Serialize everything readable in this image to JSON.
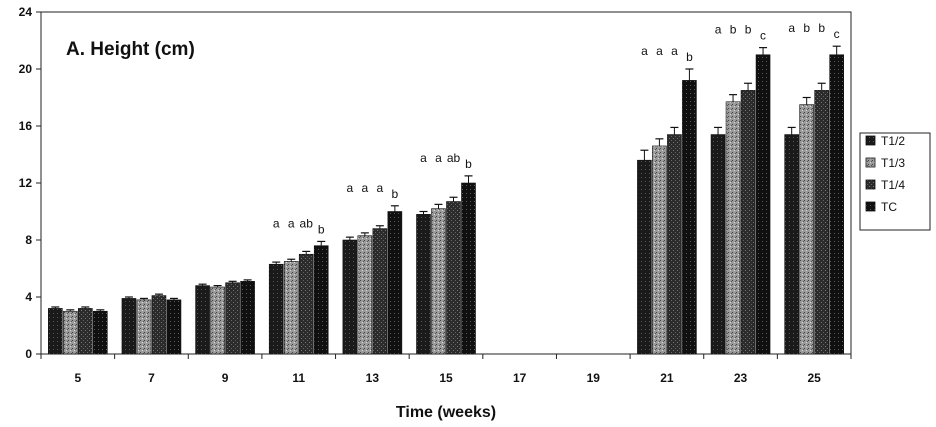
{
  "chart_data": {
    "type": "bar",
    "title": "A.  Height (cm)",
    "xlabel": "Time (weeks)",
    "ylabel": "",
    "ylim": [
      0,
      24
    ],
    "yticks": [
      "0",
      "4",
      "8",
      "12",
      "16",
      "20",
      "24"
    ],
    "categories": [
      "5",
      "7",
      "9",
      "11",
      "13",
      "15",
      "17",
      "19",
      "21",
      "23",
      "25"
    ],
    "grid": false,
    "legend_position": "right",
    "colors": {
      "T1/2": "#1a1a1a",
      "T1/3": "#9a9a9a",
      "T1/4": "#2b2b2b",
      "TC": "#101010"
    },
    "series": [
      {
        "name": "T1/2",
        "values": [
          3.2,
          3.9,
          4.8,
          6.3,
          8.0,
          9.8,
          null,
          null,
          13.6,
          15.4,
          15.4
        ],
        "errors": [
          0.1,
          0.1,
          0.1,
          0.15,
          0.2,
          0.2,
          null,
          null,
          0.7,
          0.5,
          0.5
        ]
      },
      {
        "name": "T1/3",
        "values": [
          3.0,
          3.8,
          4.7,
          6.5,
          8.3,
          10.2,
          null,
          null,
          14.6,
          17.7,
          17.5
        ],
        "errors": [
          0.1,
          0.1,
          0.1,
          0.15,
          0.2,
          0.3,
          null,
          null,
          0.5,
          0.5,
          0.5
        ]
      },
      {
        "name": "T1/4",
        "values": [
          3.2,
          4.1,
          5.0,
          7.0,
          8.8,
          10.7,
          null,
          null,
          15.4,
          18.5,
          18.5
        ],
        "errors": [
          0.1,
          0.1,
          0.1,
          0.2,
          0.2,
          0.3,
          null,
          null,
          0.5,
          0.5,
          0.5
        ]
      },
      {
        "name": "TC",
        "values": [
          3.0,
          3.8,
          5.1,
          7.6,
          10.0,
          12.0,
          null,
          null,
          19.2,
          21.0,
          21.0
        ],
        "errors": [
          0.1,
          0.1,
          0.1,
          0.3,
          0.4,
          0.5,
          null,
          null,
          0.8,
          0.5,
          0.6
        ]
      }
    ],
    "annotations": [
      {
        "category": "11",
        "labels": [
          "a",
          "a",
          "ab",
          "b"
        ]
      },
      {
        "category": "13",
        "labels": [
          "a",
          "a",
          "a",
          "b"
        ]
      },
      {
        "category": "15",
        "labels": [
          "a",
          "a",
          "ab",
          "b"
        ]
      },
      {
        "category": "21",
        "labels": [
          "a",
          "a",
          "a",
          "b"
        ]
      },
      {
        "category": "23",
        "labels": [
          "a",
          "b",
          "b",
          "c"
        ]
      },
      {
        "category": "25",
        "labels": [
          "a",
          "b",
          "b",
          "c"
        ]
      }
    ]
  }
}
